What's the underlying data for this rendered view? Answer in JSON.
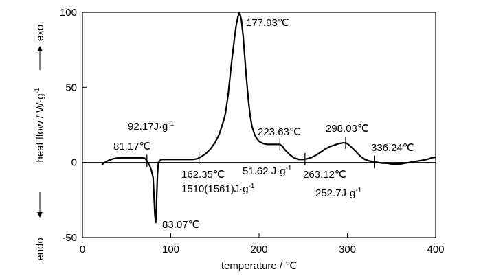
{
  "chart_data": {
    "type": "line",
    "xlabel": "temperature / ℃",
    "ylabel": "heat flow / W·g",
    "ylabel_sup": "-1",
    "y_top_label": "exo",
    "y_bottom_label": "endo",
    "xlim": [
      0,
      400
    ],
    "ylim": [
      -50,
      100
    ],
    "xticks": [
      0,
      100,
      200,
      300,
      400
    ],
    "yticks": [
      -50,
      0,
      50,
      100
    ],
    "grid": false,
    "series": [
      {
        "x": [
          22,
          25,
          30,
          35,
          40,
          45,
          50,
          55,
          60,
          65,
          70,
          72,
          74,
          76,
          78,
          80,
          81,
          82,
          83.07,
          84,
          85,
          86,
          88,
          90,
          95,
          100,
          110,
          120,
          125,
          130,
          135,
          140,
          145,
          150,
          155,
          160,
          162,
          165,
          168,
          170,
          172,
          174,
          176,
          177.93,
          180,
          182,
          184,
          186,
          188,
          190,
          192,
          195,
          198,
          200,
          205,
          210,
          215,
          220,
          223.63,
          226,
          230,
          235,
          240,
          245,
          250,
          255,
          260,
          265,
          270,
          275,
          280,
          285,
          290,
          295,
          298,
          300,
          305,
          310,
          315,
          320,
          325,
          330,
          335,
          340,
          345,
          350,
          355,
          360,
          365,
          370,
          375,
          380,
          385,
          390,
          395,
          400
        ],
        "y": [
          -1.5,
          0,
          1.5,
          2.5,
          3,
          3,
          3,
          3,
          3,
          3,
          3,
          2,
          0,
          -2,
          -5,
          -10,
          -22,
          -35,
          -40,
          -25,
          -8,
          0,
          1.5,
          2,
          2,
          2,
          2,
          2,
          2,
          2.5,
          4,
          6,
          9,
          13,
          19,
          28,
          33,
          45,
          62,
          72,
          82,
          91,
          97,
          100,
          95,
          84,
          69,
          54,
          41,
          31,
          24,
          18.5,
          15.5,
          14,
          12.5,
          12,
          12,
          12,
          12,
          11,
          8,
          5,
          3,
          2,
          2,
          2.5,
          3.5,
          5,
          7,
          9,
          10.5,
          11.5,
          12.5,
          13,
          13,
          12.5,
          10,
          7,
          4,
          2,
          1,
          0.5,
          0,
          -0.5,
          -0.5,
          -1,
          -1,
          -1,
          -0.5,
          0,
          0.5,
          1,
          1.5,
          2,
          3,
          3.5
        ]
      }
    ],
    "annotations": {
      "peak_main": "177.93℃",
      "onset_left": "81.17℃",
      "peak_endo": "83.07℃",
      "enthalpy_endo_value": "92.17J·g",
      "enthalpy_endo_sup": "-1",
      "onset_main": "162.35℃",
      "enthalpy_main_value": "1510(1561)J·g",
      "enthalpy_main_sup": "-1",
      "shoulder": "223.63℃",
      "enthalpy_mid_value": "51.62 J·g",
      "enthalpy_mid_sup": "-1",
      "valley": "263.12℃",
      "peak_late": "298.03℃",
      "enthalpy_late_value": "252.7J·g",
      "enthalpy_late_sup": "-1",
      "end": "336.24℃"
    },
    "markers_x": [
      73,
      132,
      223.63,
      252,
      298.03,
      331
    ]
  }
}
